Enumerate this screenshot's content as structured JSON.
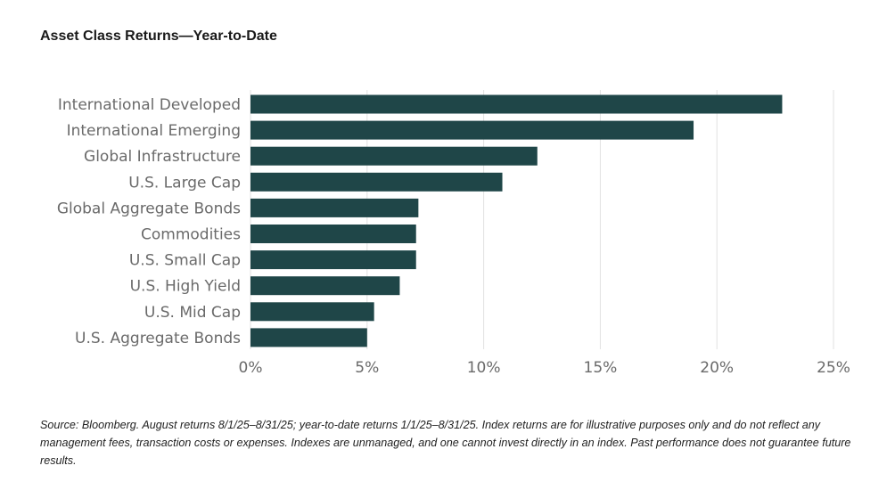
{
  "chart_data": {
    "type": "bar",
    "orientation": "horizontal",
    "title": "Asset Class Returns—Year-to-Date",
    "categories": [
      "International Developed",
      "International Emerging",
      "Global Infrastructure",
      "U.S. Large Cap",
      "Global Aggregate Bonds",
      "Commodities",
      "U.S. Small Cap",
      "U.S. High Yield",
      "U.S. Mid Cap",
      "U.S. Aggregate Bonds"
    ],
    "values": [
      22.8,
      19.0,
      12.3,
      10.8,
      7.2,
      7.1,
      7.1,
      6.4,
      5.3,
      5.0
    ],
    "xlim": [
      0,
      25
    ],
    "xticks": [
      0,
      5,
      10,
      15,
      20,
      25
    ],
    "tick_labels": [
      "0%",
      "5%",
      "10%",
      "15%",
      "20%",
      "25%"
    ],
    "grid": "vertical",
    "bar_color": "#1f4648",
    "grid_color": "#e2e2e2"
  },
  "footnote": "Source: Bloomberg. August returns 8/1/25–8/31/25; year-to-date returns 1/1/25–8/31/25. Index returns are for illustrative purposes only and do not reflect any management fees, transaction costs or expenses. Indexes are unmanaged, and one cannot invest directly in an index. Past performance does not guarantee future results."
}
